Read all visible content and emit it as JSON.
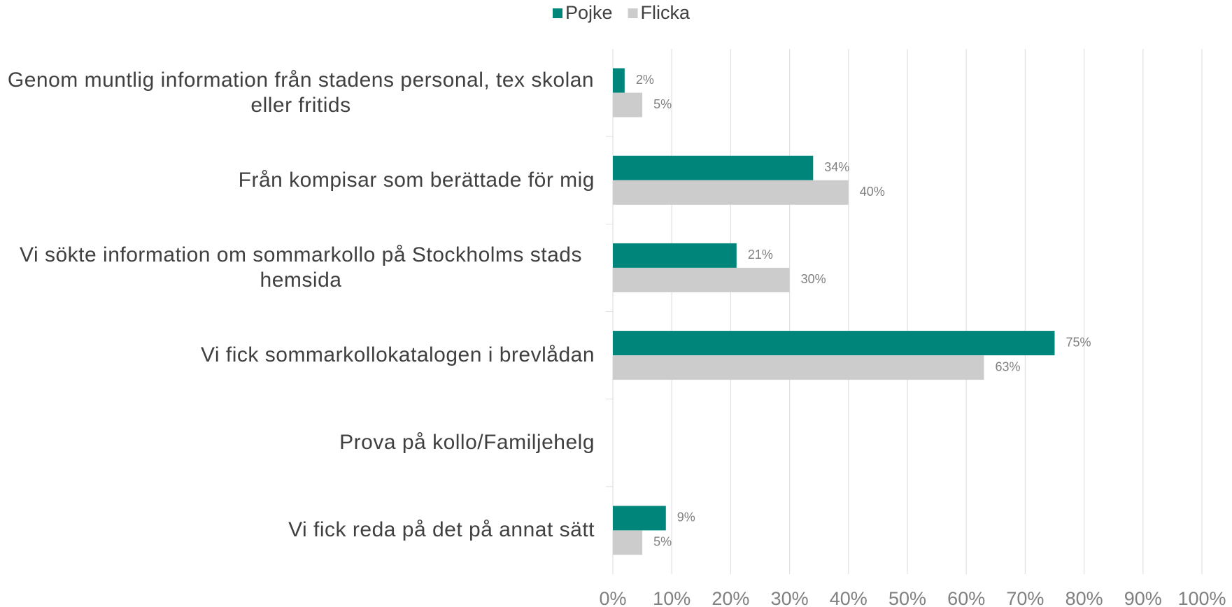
{
  "chart_data": {
    "type": "hbar",
    "categories": [
      "Genom muntlig information från stadens personal, tex skolan eller fritids",
      "Från kompisar som berättade för mig",
      "Vi sökte information om sommarkollo på Stockholms stads hemsida",
      "Vi fick sommarkollokatalogen i brevlådan",
      "Prova på kollo/Familjehelg",
      "Vi fick reda på det på annat sätt"
    ],
    "series": [
      {
        "name": "Pojke",
        "color": "#00857a",
        "values": [
          2,
          34,
          21,
          75,
          null,
          9
        ],
        "value_labels": [
          "2%",
          "34%",
          "21%",
          "75%",
          null,
          "9%"
        ]
      },
      {
        "name": "Flicka",
        "color": "#cccccc",
        "values": [
          5,
          40,
          30,
          63,
          null,
          5
        ],
        "value_labels": [
          "5%",
          "40%",
          "30%",
          "63%",
          null,
          "5%"
        ]
      }
    ],
    "xlim": [
      0,
      100
    ],
    "xticks": [
      {
        "value": 0,
        "label": "0%"
      },
      {
        "value": 10,
        "label": "10%"
      },
      {
        "value": 20,
        "label": "20%"
      },
      {
        "value": 30,
        "label": "30%"
      },
      {
        "value": 40,
        "label": "40%"
      },
      {
        "value": 50,
        "label": "50%"
      },
      {
        "value": 60,
        "label": "60%"
      },
      {
        "value": 70,
        "label": "70%"
      },
      {
        "value": 80,
        "label": "80%"
      },
      {
        "value": 90,
        "label": "90%"
      },
      {
        "value": 100,
        "label": "100%"
      }
    ],
    "grid": true,
    "legend": "top"
  }
}
